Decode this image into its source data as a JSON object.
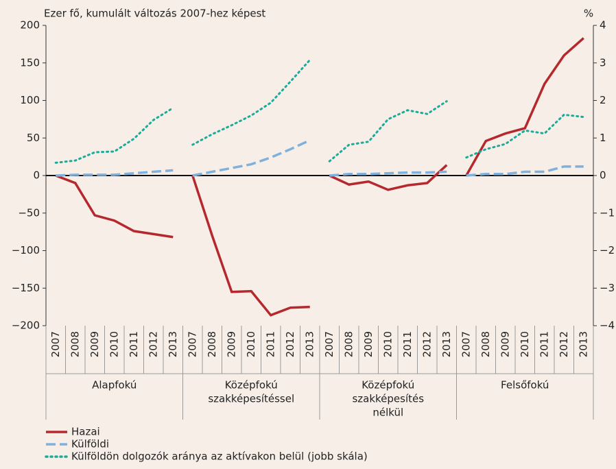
{
  "chart_data": {
    "type": "line",
    "y_label": "Ezer fő, kumulált változás 2007-hez képest",
    "y2_label": "%",
    "groups": [
      {
        "name": [
          "Alapfokú"
        ],
        "categories": [
          "2007",
          "2008",
          "2009",
          "2010",
          "2011",
          "2012",
          "2013"
        ]
      },
      {
        "name": [
          "Középfokú",
          "szakképesítéssel"
        ],
        "categories": [
          "2007",
          "2008",
          "2009",
          "2010",
          "2011",
          "2012",
          "2013"
        ]
      },
      {
        "name": [
          "Középfokú",
          "szakképesítés",
          "nélkül"
        ],
        "categories": [
          "2007",
          "2008",
          "2009",
          "2010",
          "2011",
          "2012",
          "2013"
        ]
      },
      {
        "name": [
          "Felsőfokú"
        ],
        "categories": [
          "2007",
          "2008",
          "2009",
          "2010",
          "2011",
          "2012",
          "2013"
        ]
      }
    ],
    "series": [
      {
        "name": "Hazai",
        "color": "#b5282e",
        "style": "solid",
        "values": [
          [
            0,
            -10,
            -53,
            -60,
            -74,
            -78,
            -82
          ],
          [
            0,
            -80,
            -155,
            -154,
            -186,
            -176,
            -175
          ],
          [
            0,
            -12,
            -8,
            -19,
            -13,
            -10,
            14
          ],
          [
            0,
            46,
            56,
            63,
            122,
            160,
            183
          ]
        ]
      },
      {
        "name": "Külföldi",
        "color": "#7fb1dc",
        "style": "dashed",
        "values": [
          [
            0,
            1,
            1,
            1,
            3,
            5,
            7
          ],
          [
            0,
            5,
            10,
            15,
            24,
            35,
            47
          ],
          [
            0,
            2,
            2,
            3,
            4,
            4,
            5
          ],
          [
            0,
            2,
            2,
            5,
            5,
            12,
            12
          ]
        ]
      },
      {
        "name": "Külföldön dolgozók aránya az aktívakon belül (jobb skála)",
        "color": "#1aab9b",
        "style": "dotted",
        "axis": "y2",
        "values": [
          [
            0.34,
            0.4,
            0.62,
            0.64,
            0.98,
            1.48,
            1.8
          ],
          [
            0.82,
            1.1,
            1.34,
            1.6,
            1.94,
            2.5,
            3.08
          ],
          [
            0.38,
            0.82,
            0.9,
            1.5,
            1.74,
            1.64,
            1.98
          ],
          [
            0.48,
            0.7,
            0.84,
            1.2,
            1.12,
            1.62,
            1.56
          ]
        ]
      }
    ],
    "ylim": [
      -200,
      200
    ],
    "yticks": [
      {
        "value": -200,
        "label": "−200"
      },
      {
        "value": -150,
        "label": "−150"
      },
      {
        "value": -100,
        "label": "−100"
      },
      {
        "value": -50,
        "label": "−50"
      },
      0,
      50,
      100,
      150,
      200
    ],
    "y2lim": [
      -4,
      4
    ],
    "y2ticks": [
      {
        "value": -4,
        "label": "−4"
      },
      {
        "value": -3,
        "label": "−3"
      },
      {
        "value": -2,
        "label": "−2"
      },
      {
        "value": -1,
        "label": "−1"
      },
      0,
      1,
      2,
      3,
      4
    ]
  }
}
